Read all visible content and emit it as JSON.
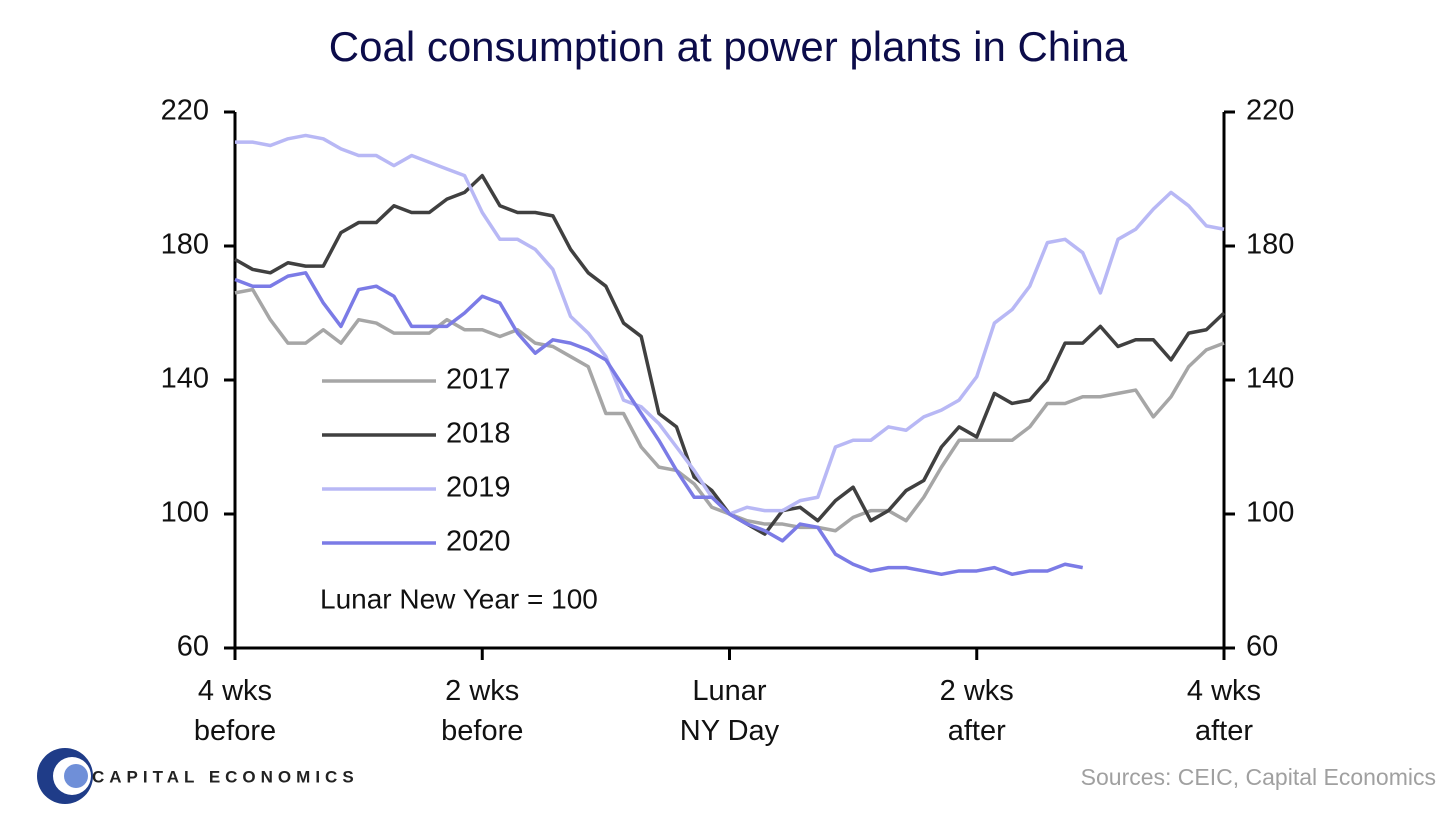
{
  "chart_data": {
    "type": "line",
    "title": "Coal consumption at power plants in China",
    "annotation": "Lunar New Year = 100",
    "source": "Sources: CEIC, Capital Economics",
    "brand": "CAPITAL ECONOMICS",
    "x": [
      -28,
      -27,
      -26,
      -25,
      -24,
      -23,
      -22,
      -21,
      -20,
      -19,
      -18,
      -17,
      -16,
      -15,
      -14,
      -13,
      -12,
      -11,
      -10,
      -9,
      -8,
      -7,
      -6,
      -5,
      -4,
      -3,
      -2,
      -1,
      0,
      1,
      2,
      3,
      4,
      5,
      6,
      7,
      8,
      9,
      10,
      11,
      12,
      13,
      14,
      15,
      16,
      17,
      18,
      19,
      20,
      21,
      22,
      23,
      24,
      25,
      26,
      27,
      28
    ],
    "xlim": [
      -28,
      28
    ],
    "xticks": [
      {
        "value": -28,
        "label": "4 wks\nbefore"
      },
      {
        "value": -14,
        "label": "2 wks\nbefore"
      },
      {
        "value": 0,
        "label": "Lunar\nNY Day"
      },
      {
        "value": 14,
        "label": "2 wks\nafter"
      },
      {
        "value": 28,
        "label": "4 wks\nafter"
      }
    ],
    "ylim": [
      60,
      220
    ],
    "yticks": [
      60,
      100,
      140,
      180,
      220
    ],
    "y2lim": [
      60,
      220
    ],
    "y2ticks": [
      60,
      100,
      140,
      180,
      220
    ],
    "grid": false,
    "series": [
      {
        "name": "2017",
        "color": "#a6a6a6",
        "values": [
          166,
          167,
          158,
          151,
          151,
          155,
          151,
          158,
          157,
          154,
          154,
          154,
          158,
          155,
          155,
          153,
          155,
          151,
          150,
          147,
          144,
          130,
          130,
          120,
          114,
          113,
          109,
          102,
          100,
          98,
          97,
          97,
          96,
          96,
          95,
          99,
          101,
          101,
          98,
          105,
          114,
          122,
          122,
          122,
          122,
          126,
          133,
          133,
          135,
          135,
          136,
          137,
          129,
          135,
          144,
          149,
          151
        ]
      },
      {
        "name": "2018",
        "color": "#404040",
        "values": [
          176,
          173,
          172,
          175,
          174,
          174,
          184,
          187,
          187,
          192,
          190,
          190,
          194,
          196,
          201,
          192,
          190,
          190,
          189,
          179,
          172,
          168,
          157,
          153,
          130,
          126,
          111,
          107,
          100,
          97,
          94,
          101,
          102,
          98,
          104,
          108,
          98,
          101,
          107,
          110,
          120,
          126,
          123,
          136,
          133,
          134,
          140,
          151,
          151,
          156,
          150,
          152,
          152,
          146,
          154,
          155,
          160
        ]
      },
      {
        "name": "2019",
        "color": "#b8b8f5",
        "values": [
          211,
          211,
          210,
          212,
          213,
          212,
          209,
          207,
          207,
          204,
          207,
          205,
          203,
          201,
          190,
          182,
          182,
          179,
          173,
          159,
          154,
          147,
          134,
          132,
          127,
          120,
          113,
          105,
          100,
          102,
          101,
          101,
          104,
          105,
          120,
          122,
          122,
          126,
          125,
          129,
          131,
          134,
          141,
          157,
          161,
          168,
          181,
          182,
          178,
          166,
          182,
          185,
          191,
          196,
          192,
          186,
          185
        ]
      },
      {
        "name": "2020",
        "color": "#7b7be6",
        "values": [
          170,
          168,
          168,
          171,
          172,
          163,
          156,
          167,
          168,
          165,
          156,
          156,
          156,
          160,
          165,
          163,
          154,
          148,
          152,
          151,
          149,
          146,
          138,
          130,
          122,
          113,
          105,
          105,
          100,
          97,
          95,
          92,
          97,
          96,
          88,
          85,
          83,
          84,
          84,
          83,
          82,
          83,
          83,
          84,
          82,
          83,
          83,
          85,
          84,
          null,
          null,
          null,
          null,
          null,
          null,
          null,
          null
        ]
      }
    ]
  }
}
